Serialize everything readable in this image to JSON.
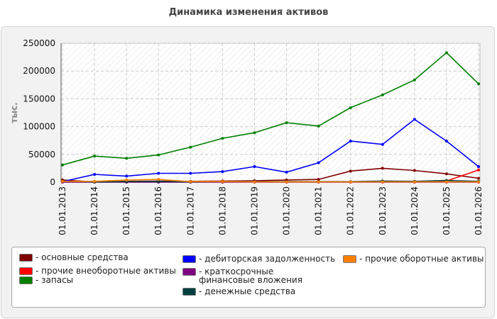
{
  "chart_data": {
    "type": "line",
    "title": "Динамика изменения активов",
    "ylabel": "тыс.",
    "xlabel": "",
    "ylim": [
      0,
      250000
    ],
    "yticks": [
      0,
      50000,
      100000,
      150000,
      200000,
      250000
    ],
    "grid": true,
    "legend_position": "bottom",
    "categories": [
      "01.01.2013",
      "01.01.2014",
      "01.01.2015",
      "01.01.2016",
      "01.01.2017",
      "01.01.2018",
      "01.01.2019",
      "01.01.2020",
      "01.01.2021",
      "01.01.2022",
      "01.01.2023",
      "01.01.2024",
      "01.01.2025",
      "01.01.2026"
    ],
    "series": [
      {
        "name": "- основные средства",
        "color": "#800000",
        "values": [
          4000,
          500,
          1500,
          2000,
          1500,
          2000,
          2500,
          4000,
          5000,
          20000,
          25000,
          21000,
          15000,
          7000
        ]
      },
      {
        "name": "- прочие внеоборотные активы",
        "color": "#ff0000",
        "values": [
          500,
          500,
          500,
          500,
          500,
          500,
          500,
          500,
          500,
          500,
          500,
          500,
          2000,
          22000
        ]
      },
      {
        "name": "- запасы",
        "color": "#008000",
        "values": [
          31000,
          47000,
          43000,
          49000,
          63000,
          79000,
          89000,
          107000,
          101000,
          134000,
          157000,
          184000,
          233000,
          177000
        ]
      },
      {
        "name": "- дебиторская задолженность",
        "color": "#0000ff",
        "values": [
          1000,
          14000,
          11000,
          16000,
          16000,
          19000,
          28000,
          18000,
          35000,
          74000,
          68000,
          113000,
          74000,
          28000
        ]
      },
      {
        "name": "- краткосрочные финансовые вложения",
        "color": "#800080",
        "values": [
          0,
          0,
          0,
          0,
          0,
          0,
          0,
          0,
          0,
          0,
          0,
          0,
          0,
          0
        ]
      },
      {
        "name": "- денежные средства",
        "color": "#004040",
        "values": [
          1500,
          500,
          1000,
          1500,
          500,
          1000,
          1000,
          1000,
          1000,
          1000,
          2000,
          1500,
          3000,
          1500
        ]
      },
      {
        "name": "- прочие оборотные активы",
        "color": "#ff8000",
        "values": [
          1500,
          1500,
          4000,
          5000,
          1000,
          1000,
          500,
          500,
          500,
          500,
          500,
          500,
          500,
          500
        ]
      }
    ]
  }
}
